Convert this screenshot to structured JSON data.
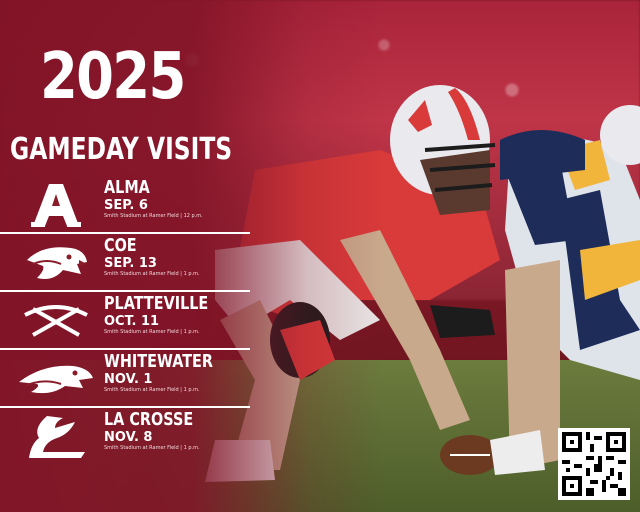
{
  "header": {
    "year": "2025",
    "title": "GAMEDAY VISITS"
  },
  "games": [
    {
      "opponent": "ALMA",
      "date": "SEP. 6",
      "venue": "Smith Stadium at Ramer Field | 12 p.m.",
      "logo_icon": "alma-a-logo-icon"
    },
    {
      "opponent": "COE",
      "date": "SEP. 13",
      "venue": "Smith Stadium at Ramer Field | 1 p.m.",
      "logo_icon": "coe-kohawk-logo-icon"
    },
    {
      "opponent": "PLATTEVILLE",
      "date": "OCT. 11",
      "venue": "Smith Stadium at Ramer Field | 1 p.m.",
      "logo_icon": "platteville-pickaxes-logo-icon"
    },
    {
      "opponent": "WHITEWATER",
      "date": "NOV. 1",
      "venue": "Smith Stadium at Ramer Field | 1 p.m.",
      "logo_icon": "whitewater-hawk-logo-icon"
    },
    {
      "opponent": "LA CROSSE",
      "date": "NOV. 8",
      "venue": "Smith Stadium at Ramer Field | 1 p.m.",
      "logo_icon": "la-crosse-eagle-logo-icon"
    }
  ],
  "colors": {
    "brand": "#8a1c2a",
    "white": "#ffffff"
  },
  "qr_icon": "qr-code-icon"
}
